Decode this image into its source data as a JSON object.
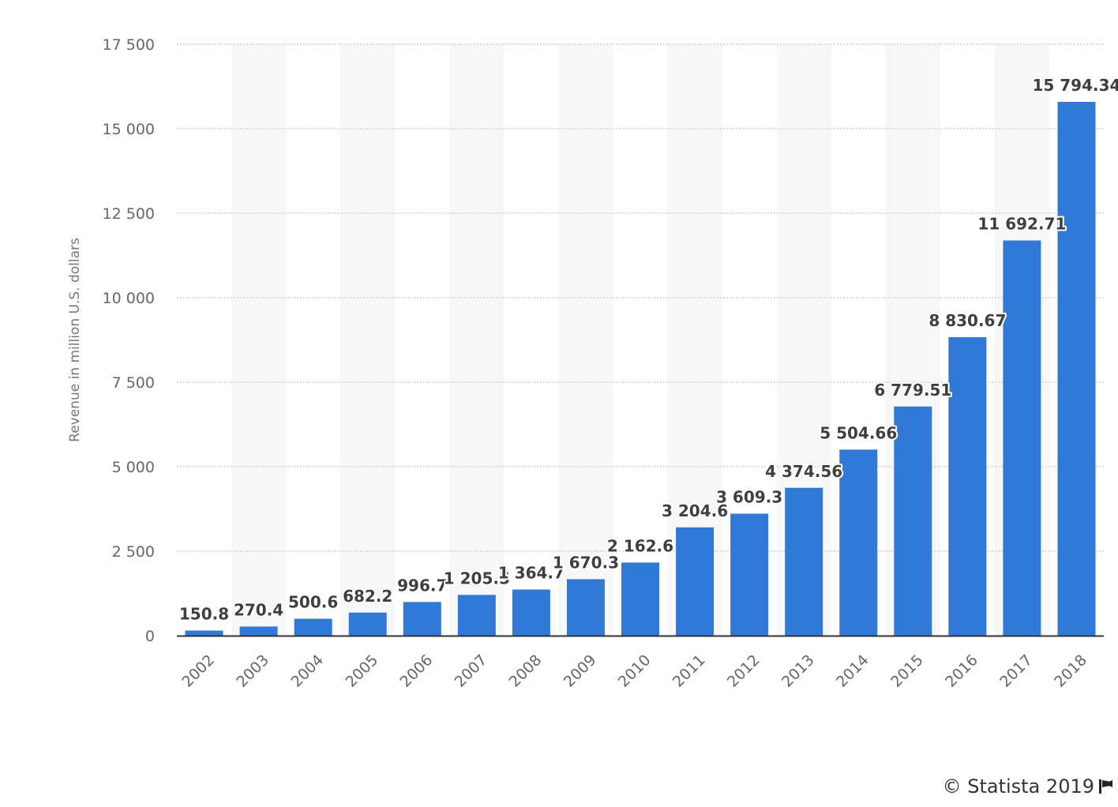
{
  "chart_data": {
    "type": "bar",
    "categories": [
      "2002",
      "2003",
      "2004",
      "2005",
      "2006",
      "2007",
      "2008",
      "2009",
      "2010",
      "2011",
      "2012",
      "2013",
      "2014",
      "2015",
      "2016",
      "2017",
      "2018"
    ],
    "values": [
      150.8,
      270.4,
      500.6,
      682.2,
      996.7,
      1205.5,
      1364.7,
      1670.3,
      2162.6,
      3204.6,
      3609.3,
      4374.56,
      5504.66,
      6779.51,
      8830.67,
      11692.71,
      15794.34
    ],
    "value_labels": [
      "150.8",
      "270.4",
      "500.6",
      "682.2",
      "996.7",
      "1 205.5",
      "1 364.7",
      "1 670.3",
      "2 162.6",
      "3 204.6",
      "3 609.3",
      "4 374.56",
      "5 504.66",
      "6 779.51",
      "8 830.67",
      "11 692.71",
      "15 794.34"
    ],
    "ylabel": "Revenue in million U.S. dollars",
    "ylim": [
      0,
      17500
    ],
    "yticks": [
      0,
      2500,
      5000,
      7500,
      10000,
      12500,
      15000,
      17500
    ],
    "ytick_labels": [
      "0",
      "2 500",
      "5 000",
      "7 500",
      "10 000",
      "12 500",
      "15 000",
      "17 500"
    ],
    "grid": true,
    "colors": {
      "bar": "#3079d6",
      "band": "#f7f7f7",
      "grid": "#cfcfcf",
      "axis": "#333333"
    }
  },
  "footer": {
    "credit": "© Statista 2019",
    "flag_icon": "flag-icon"
  }
}
